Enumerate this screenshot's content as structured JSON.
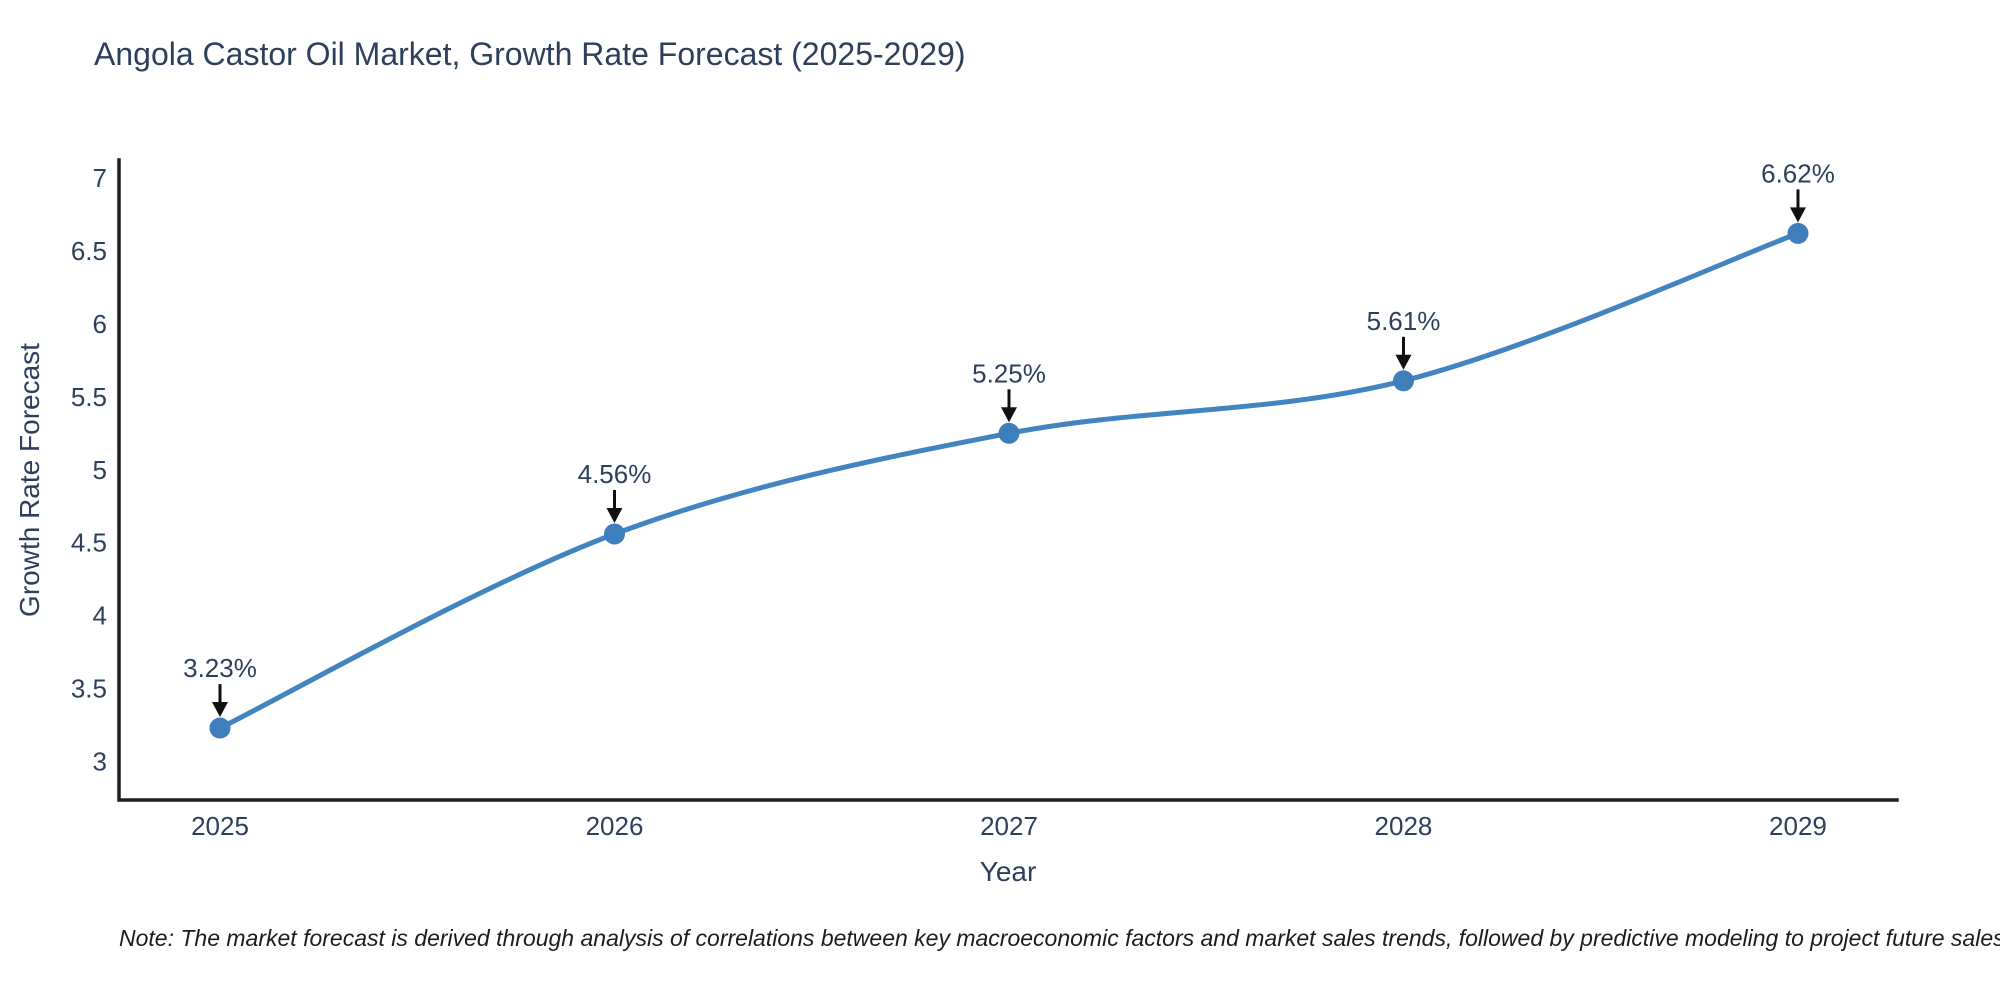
{
  "title": "Angola Castor Oil Market, Growth Rate Forecast (2025-2029)",
  "note": "Note: The market forecast is derived through analysis of correlations between key macroeconomic factors and market sales trends, followed by predictive modeling to project future sales",
  "chart_data": {
    "type": "line",
    "title": "Angola Castor Oil Market, Growth Rate Forecast (2025-2029)",
    "xlabel": "Year",
    "ylabel": "Growth Rate Forecast",
    "x": [
      2025,
      2026,
      2027,
      2028,
      2029
    ],
    "y": [
      3.23,
      4.56,
      5.25,
      5.61,
      6.62
    ],
    "point_labels": [
      "3.23%",
      "4.56%",
      "5.25%",
      "5.61%",
      "6.62%"
    ],
    "x_tick_labels": [
      "2025",
      "2026",
      "2027",
      "2028",
      "2029"
    ],
    "y_ticks": [
      3,
      3.5,
      4,
      4.5,
      5,
      5.5,
      6,
      6.5,
      7
    ],
    "y_tick_labels": [
      "3",
      "3.5",
      "4",
      "4.5",
      "5",
      "5.5",
      "6",
      "6.5",
      "7"
    ],
    "xlim": [
      2024.744,
      2029.251
    ],
    "ylim": [
      2.737,
      7.123
    ],
    "grid": false,
    "legend": "none",
    "line_shape": "spline",
    "annotation_style": "arrow-down-to-point",
    "colors": {
      "series": "#4184bf",
      "marker": "#3e7fbb",
      "axis": "#1f1f1f",
      "text": "#2e3f5c",
      "arrow": "#111111",
      "background": "#ffffff"
    }
  }
}
